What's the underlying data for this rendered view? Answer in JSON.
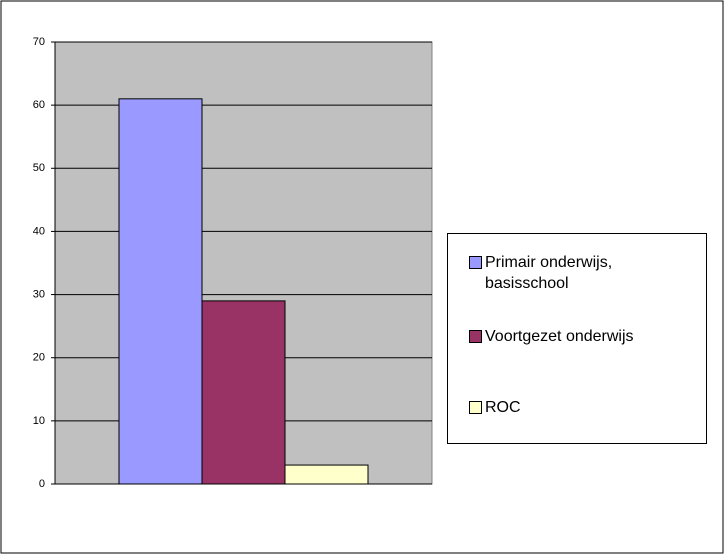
{
  "chart_data": {
    "type": "bar",
    "categories": [
      null
    ],
    "series": [
      {
        "name": "Primair onderwijs, basisschool",
        "color": "#9999ff",
        "values": [
          61
        ]
      },
      {
        "name": "Voortgezet onderwijs",
        "color": "#993366",
        "values": [
          29
        ]
      },
      {
        "name": "ROC",
        "color": "#ffffcc",
        "values": [
          3
        ]
      }
    ],
    "ylim": [
      0,
      70
    ],
    "yticks": [
      0,
      10,
      20,
      30,
      40,
      50,
      60,
      70
    ],
    "grid": true,
    "plot_background": "#c0c0c0",
    "legend": "right"
  }
}
